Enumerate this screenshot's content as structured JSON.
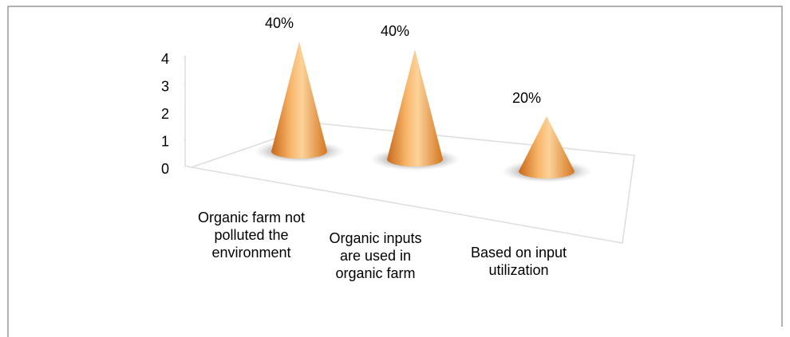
{
  "chart_data": {
    "type": "cone",
    "categories": [
      "Organic farm not polluted the environment",
      "Organic inputs are used in organic farm",
      "Based on input utilization"
    ],
    "values": [
      4,
      4,
      2
    ],
    "value_labels": [
      "40%",
      "40%",
      "20%"
    ],
    "color": "#f39a3c",
    "ylim": [
      0,
      4
    ],
    "yticks": [
      0,
      1,
      2,
      3,
      4
    ]
  }
}
